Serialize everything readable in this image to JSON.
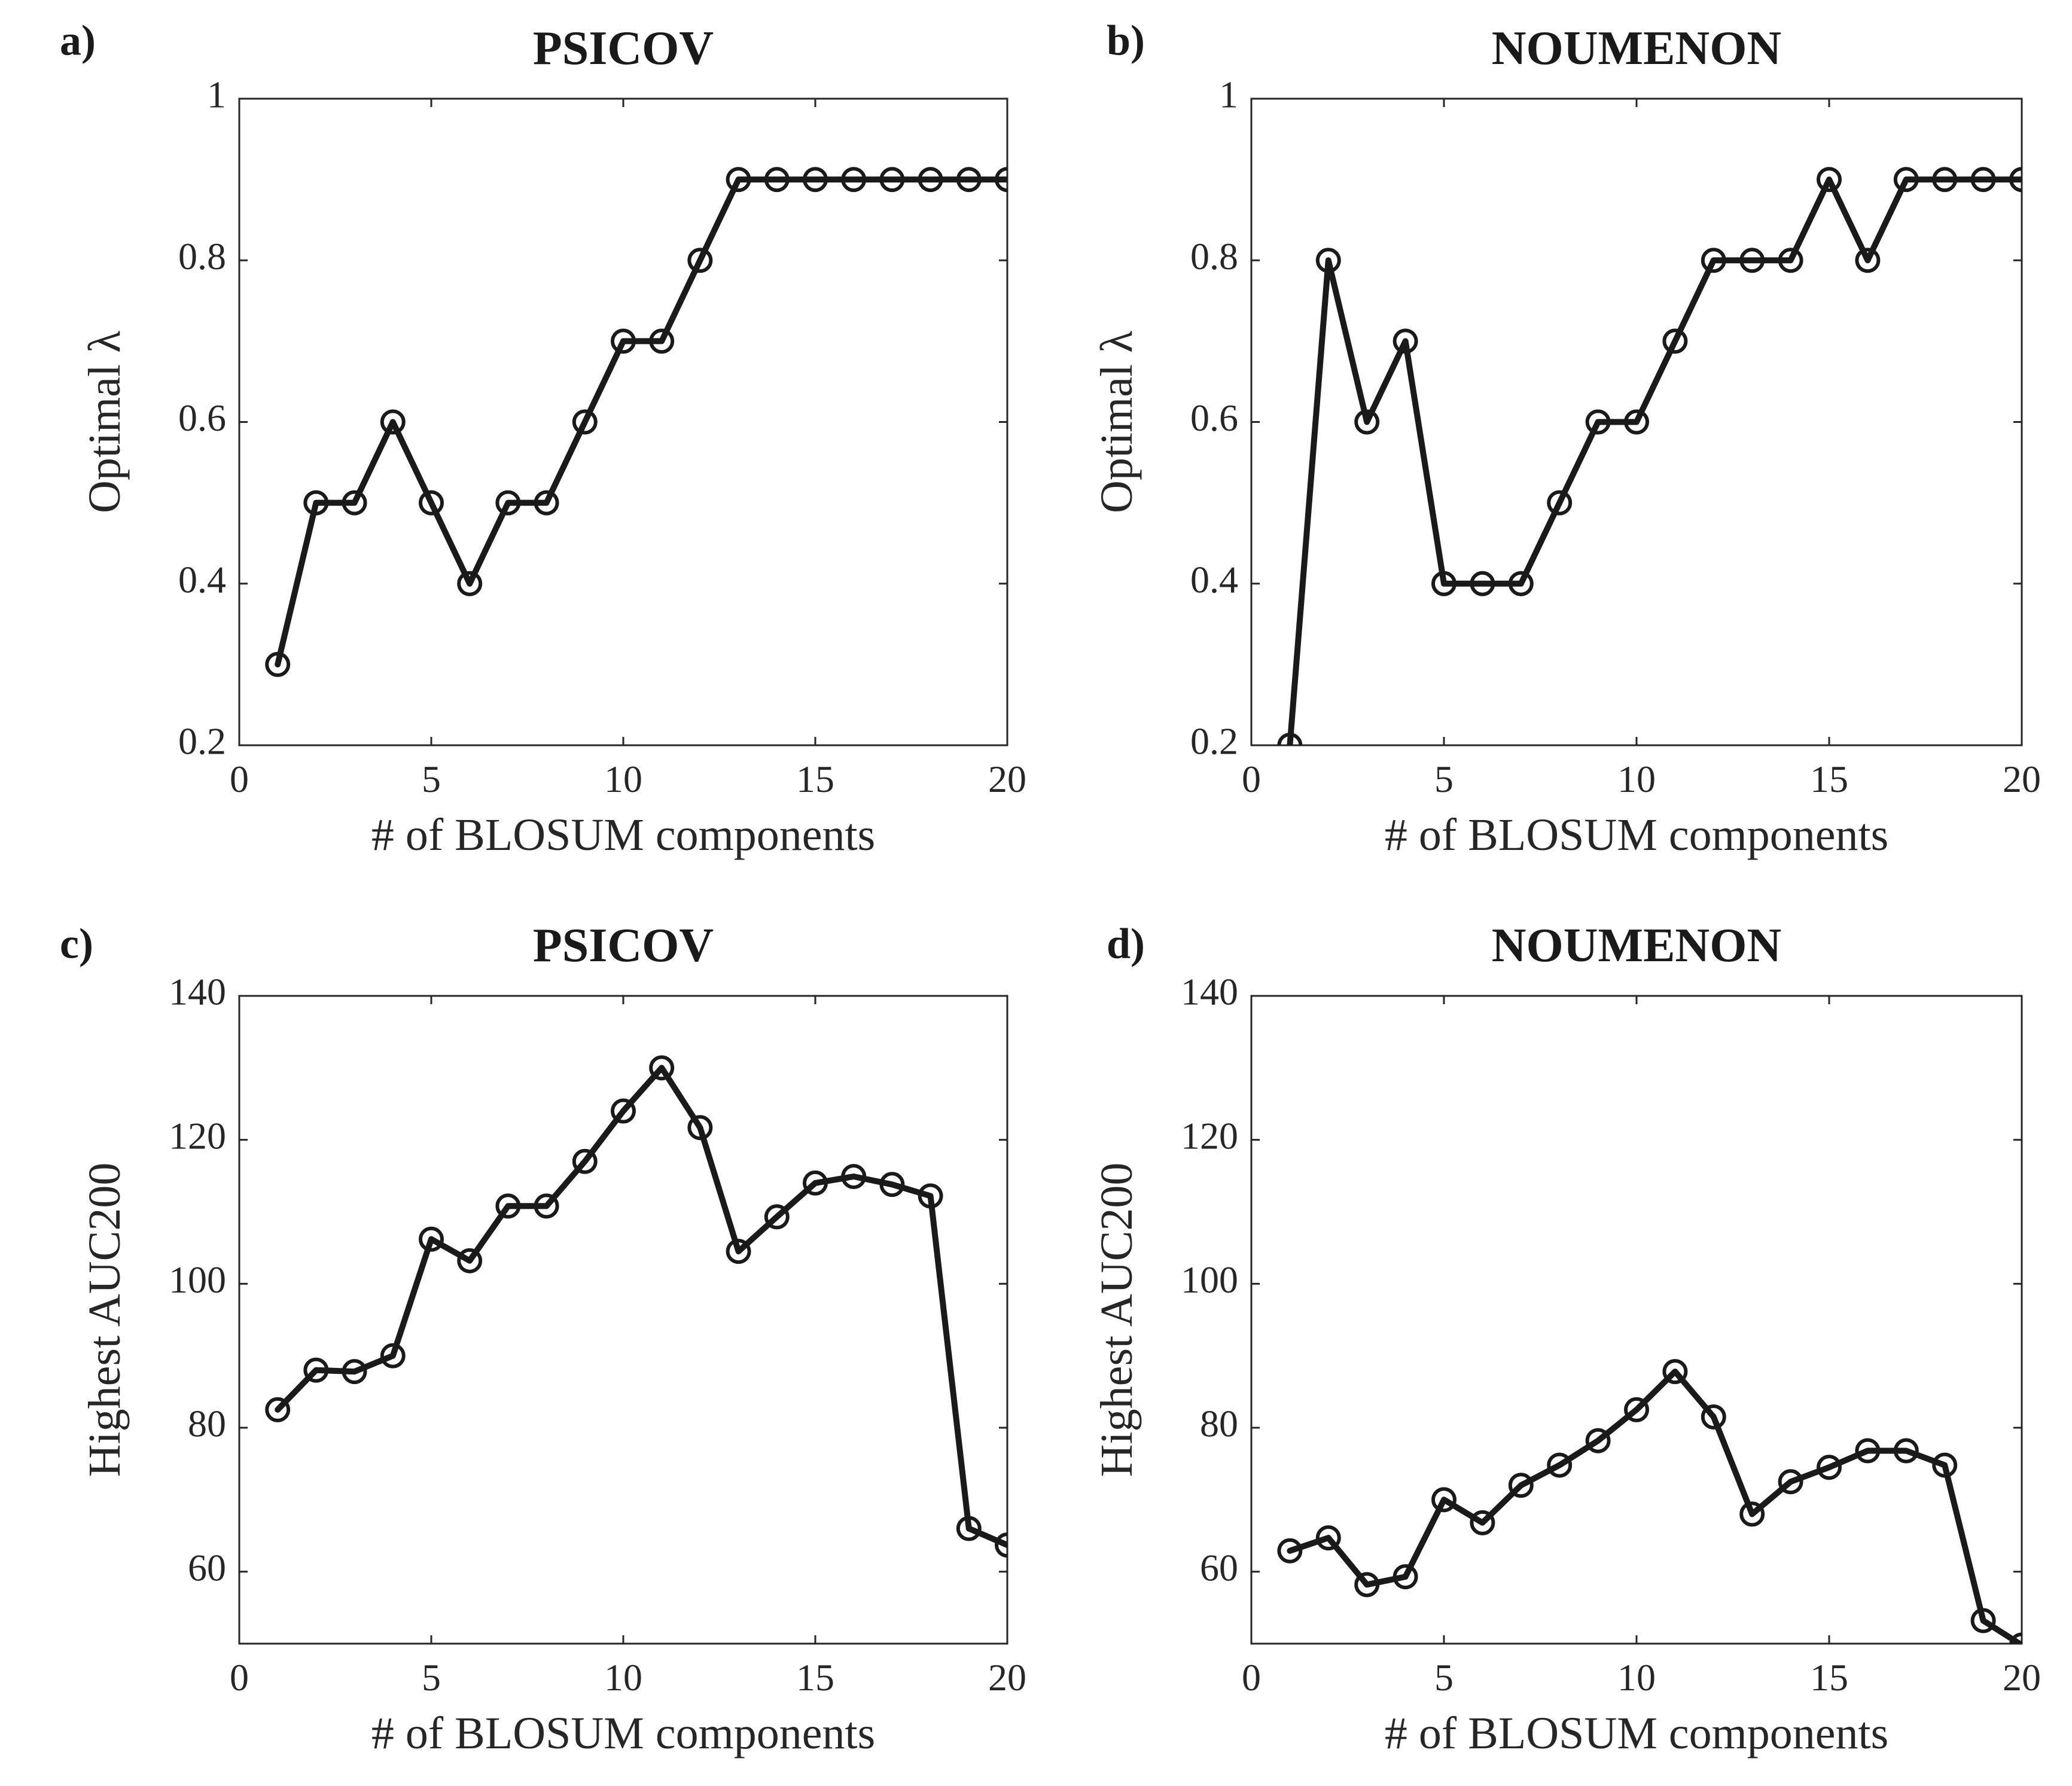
{
  "chart_data": [
    {
      "panel_label": "a)",
      "type": "line",
      "title": "PSICOV",
      "xlabel": "# of BLOSUM components",
      "ylabel": "Optimal λ",
      "xlim": [
        0,
        20
      ],
      "ylim": [
        0.2,
        1
      ],
      "xticks": [
        0,
        5,
        10,
        15,
        20
      ],
      "xtick_labels": [
        "0",
        "5",
        "10",
        "15",
        "20"
      ],
      "yticks": [
        0.2,
        0.4,
        0.6,
        0.8,
        1
      ],
      "ytick_labels": [
        "0.2",
        "0.4",
        "0.6",
        "0.8",
        "1"
      ],
      "grid": false,
      "marker": "circle",
      "x": [
        1,
        2,
        3,
        4,
        5,
        6,
        7,
        8,
        9,
        10,
        11,
        12,
        13,
        14,
        15,
        16,
        17,
        18,
        19,
        20
      ],
      "y": [
        0.3,
        0.5,
        0.5,
        0.6,
        0.5,
        0.4,
        0.5,
        0.5,
        0.6,
        0.7,
        0.7,
        0.8,
        0.9,
        0.9,
        0.9,
        0.9,
        0.9,
        0.9,
        0.9,
        0.9
      ]
    },
    {
      "panel_label": "b)",
      "type": "line",
      "title": "NOUMENON",
      "xlabel": "# of BLOSUM components",
      "ylabel": "Optimal λ",
      "xlim": [
        0,
        20
      ],
      "ylim": [
        0.2,
        1
      ],
      "xticks": [
        0,
        5,
        10,
        15,
        20
      ],
      "xtick_labels": [
        "0",
        "5",
        "10",
        "15",
        "20"
      ],
      "yticks": [
        0.2,
        0.4,
        0.6,
        0.8,
        1
      ],
      "ytick_labels": [
        "0.2",
        "0.4",
        "0.6",
        "0.8",
        "1"
      ],
      "grid": false,
      "marker": "circle",
      "x": [
        1,
        2,
        3,
        4,
        5,
        6,
        7,
        8,
        9,
        10,
        11,
        12,
        13,
        14,
        15,
        16,
        17,
        18,
        19,
        20
      ],
      "y": [
        0.2,
        0.8,
        0.6,
        0.7,
        0.4,
        0.4,
        0.4,
        0.5,
        0.6,
        0.6,
        0.7,
        0.8,
        0.8,
        0.8,
        0.9,
        0.8,
        0.9,
        0.9,
        0.9,
        0.9
      ]
    },
    {
      "panel_label": "c)",
      "type": "line",
      "title": "PSICOV",
      "xlabel": "# of BLOSUM components",
      "ylabel": "Highest AUC200",
      "xlim": [
        0,
        20
      ],
      "ylim": [
        50,
        140
      ],
      "xticks": [
        0,
        5,
        10,
        15,
        20
      ],
      "xtick_labels": [
        "0",
        "5",
        "10",
        "15",
        "20"
      ],
      "yticks": [
        60,
        80,
        100,
        120,
        140
      ],
      "ytick_labels": [
        "60",
        "80",
        "100",
        "120",
        "140"
      ],
      "grid": false,
      "marker": "circle",
      "x": [
        1,
        2,
        3,
        4,
        5,
        6,
        7,
        8,
        9,
        10,
        11,
        12,
        13,
        14,
        15,
        16,
        17,
        18,
        19,
        20
      ],
      "y": [
        82.5,
        88,
        87.8,
        90,
        106.2,
        103.2,
        110.8,
        110.8,
        117,
        124,
        130,
        121.7,
        104.5,
        109.3,
        114,
        114.9,
        113.8,
        112.2,
        66,
        63.7
      ]
    },
    {
      "panel_label": "d)",
      "type": "line",
      "title": "NOUMENON",
      "xlabel": "# of BLOSUM components",
      "ylabel": "Highest AUC200",
      "xlim": [
        0,
        20
      ],
      "ylim": [
        50,
        140
      ],
      "xticks": [
        0,
        5,
        10,
        15,
        20
      ],
      "xtick_labels": [
        "0",
        "5",
        "10",
        "15",
        "20"
      ],
      "yticks": [
        60,
        80,
        100,
        120,
        140
      ],
      "ytick_labels": [
        "60",
        "80",
        "100",
        "120",
        "140"
      ],
      "grid": false,
      "marker": "circle",
      "x": [
        1,
        2,
        3,
        4,
        5,
        6,
        7,
        8,
        9,
        10,
        11,
        12,
        13,
        14,
        15,
        16,
        17,
        18,
        19,
        20
      ],
      "y": [
        62.9,
        64.7,
        58.2,
        59.3,
        70,
        66.8,
        72,
        74.8,
        78.2,
        82.5,
        87.8,
        81.5,
        68,
        72.5,
        74.5,
        76.8,
        76.8,
        74.8,
        53.2,
        49.8
      ]
    }
  ]
}
